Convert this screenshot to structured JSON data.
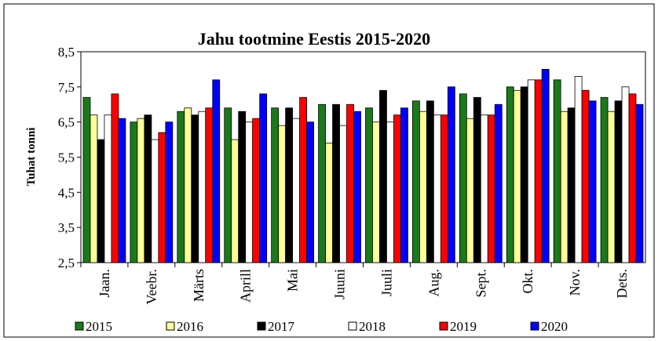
{
  "chart_data": {
    "type": "bar",
    "title": "Jahu tootmine Eestis 2015-2020",
    "y_label": "Tuhat tonni",
    "categories": [
      "Jaan.",
      "Veebr.",
      "Märts",
      "Aprill",
      "Mai",
      "Juuni",
      "Juuli",
      "Aug.",
      "Sept.",
      "Okt.",
      "Nov.",
      "Dets."
    ],
    "series": [
      {
        "name": "2015",
        "color": "#1a7a1a",
        "values": [
          7.2,
          6.5,
          6.8,
          6.9,
          6.9,
          7.0,
          6.9,
          7.1,
          7.3,
          7.5,
          7.7,
          7.2
        ]
      },
      {
        "name": "2016",
        "color": "#ffff99",
        "values": [
          6.7,
          6.6,
          6.9,
          6.0,
          6.4,
          5.9,
          6.5,
          6.8,
          6.6,
          7.4,
          6.8,
          6.8
        ]
      },
      {
        "name": "2017",
        "color": "#000000",
        "values": [
          6.0,
          6.7,
          6.7,
          6.8,
          6.9,
          7.0,
          7.4,
          7.1,
          7.2,
          7.5,
          6.9,
          7.1
        ]
      },
      {
        "name": "2018",
        "color": "#ffffff",
        "values": [
          6.7,
          6.0,
          6.8,
          6.5,
          6.6,
          6.4,
          6.5,
          6.7,
          6.7,
          7.7,
          7.8,
          7.5
        ]
      },
      {
        "name": "2019",
        "color": "#ff0000",
        "values": [
          7.3,
          6.2,
          6.9,
          6.6,
          7.2,
          7.0,
          6.7,
          6.7,
          6.7,
          7.7,
          7.4,
          7.3
        ]
      },
      {
        "name": "2020",
        "color": "#0000ff",
        "values": [
          6.6,
          6.5,
          7.7,
          7.3,
          6.5,
          6.8,
          6.9,
          7.5,
          7.0,
          8.0,
          7.1,
          7.0
        ]
      }
    ],
    "ylim": [
      2.5,
      8.5
    ],
    "yticks": [
      {
        "value": 2.5,
        "label": "2,5"
      },
      {
        "value": 3.5,
        "label": "3,5"
      },
      {
        "value": 4.5,
        "label": "4,5"
      },
      {
        "value": 5.5,
        "label": "5,5"
      },
      {
        "value": 6.5,
        "label": "6,5"
      },
      {
        "value": 7.5,
        "label": "7,5"
      },
      {
        "value": 8.5,
        "label": "8,5"
      }
    ],
    "grid": false,
    "legend": "bottom"
  }
}
